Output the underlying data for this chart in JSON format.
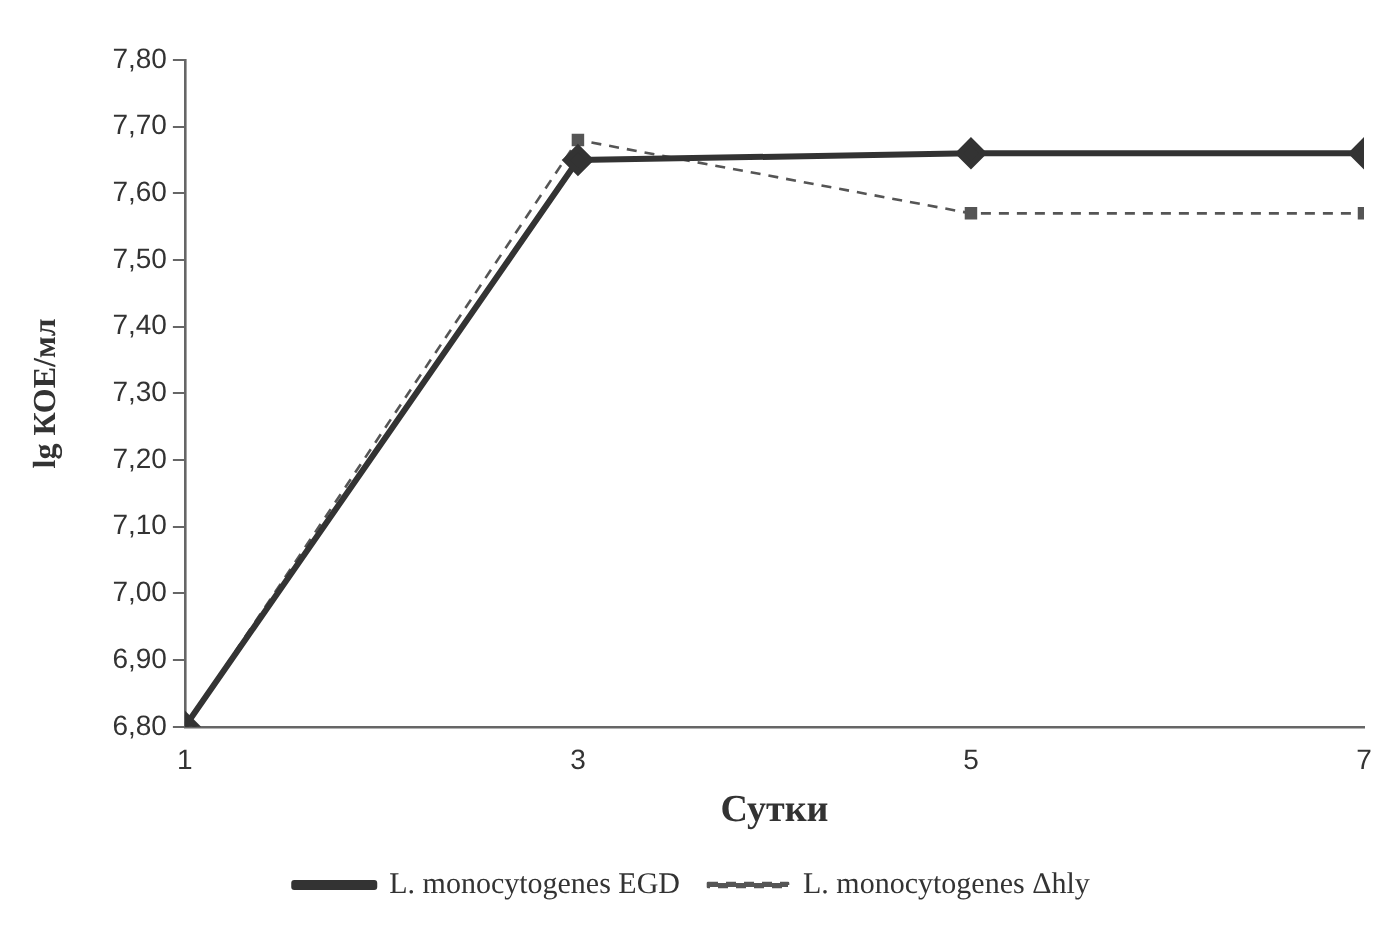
{
  "chart_data": {
    "type": "line",
    "xlabel": "Сутки",
    "ylabel": "lg КОЕ/мл",
    "x": [
      1,
      3,
      5,
      7
    ],
    "series": [
      {
        "name": "L. monocytogenes EGD",
        "color": "#333333",
        "values": [
          6.8,
          7.65,
          7.66,
          7.66
        ],
        "marker": "diamond",
        "line_style": "solid"
      },
      {
        "name": "L. monocytogenes Δhly",
        "color": "#555555",
        "values": [
          6.8,
          7.68,
          7.57,
          7.57
        ],
        "marker": "square",
        "line_style": "dashed"
      }
    ],
    "xlim": [
      1,
      7
    ],
    "xticks": [
      1,
      3,
      5,
      7
    ],
    "ylim": [
      6.8,
      7.8
    ],
    "yticks": [
      {
        "value": 6.8,
        "label": "6,80"
      },
      {
        "value": 6.9,
        "label": "6,90"
      },
      {
        "value": 7.0,
        "label": "7,00"
      },
      {
        "value": 7.1,
        "label": "7,10"
      },
      {
        "value": 7.2,
        "label": "7,20"
      },
      {
        "value": 7.3,
        "label": "7,30"
      },
      {
        "value": 7.4,
        "label": "7,40"
      },
      {
        "value": 7.5,
        "label": "7,50"
      },
      {
        "value": 7.6,
        "label": "7,60"
      },
      {
        "value": 7.7,
        "label": "7,70"
      },
      {
        "value": 7.8,
        "label": "7,80"
      }
    ],
    "grid": false,
    "legend": "bottom"
  }
}
